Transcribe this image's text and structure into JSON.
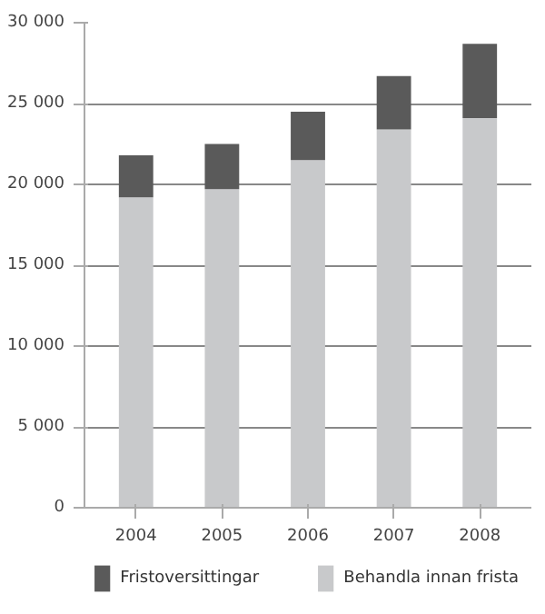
{
  "chart_data": {
    "type": "bar",
    "stacked": true,
    "categories": [
      "2004",
      "2005",
      "2006",
      "2007",
      "2008"
    ],
    "series": [
      {
        "name": "Behandla innan frista",
        "color": "#c8c9cb",
        "values": [
          19200,
          19700,
          21500,
          23400,
          24100
        ]
      },
      {
        "name": "Fristoversittingar",
        "color": "#5a5a5a",
        "values": [
          2600,
          2800,
          3000,
          3300,
          4600
        ]
      }
    ],
    "ylim": [
      0,
      30000
    ],
    "yticks": [
      {
        "value": 0,
        "label": "0"
      },
      {
        "value": 5000,
        "label": "5 000"
      },
      {
        "value": 10000,
        "label": "10 000"
      },
      {
        "value": 15000,
        "label": "15 000"
      },
      {
        "value": 20000,
        "label": "20 000"
      },
      {
        "value": 25000,
        "label": "25 000"
      },
      {
        "value": 30000,
        "label": "30 000"
      }
    ],
    "grid": "y",
    "legend": "bottom"
  }
}
